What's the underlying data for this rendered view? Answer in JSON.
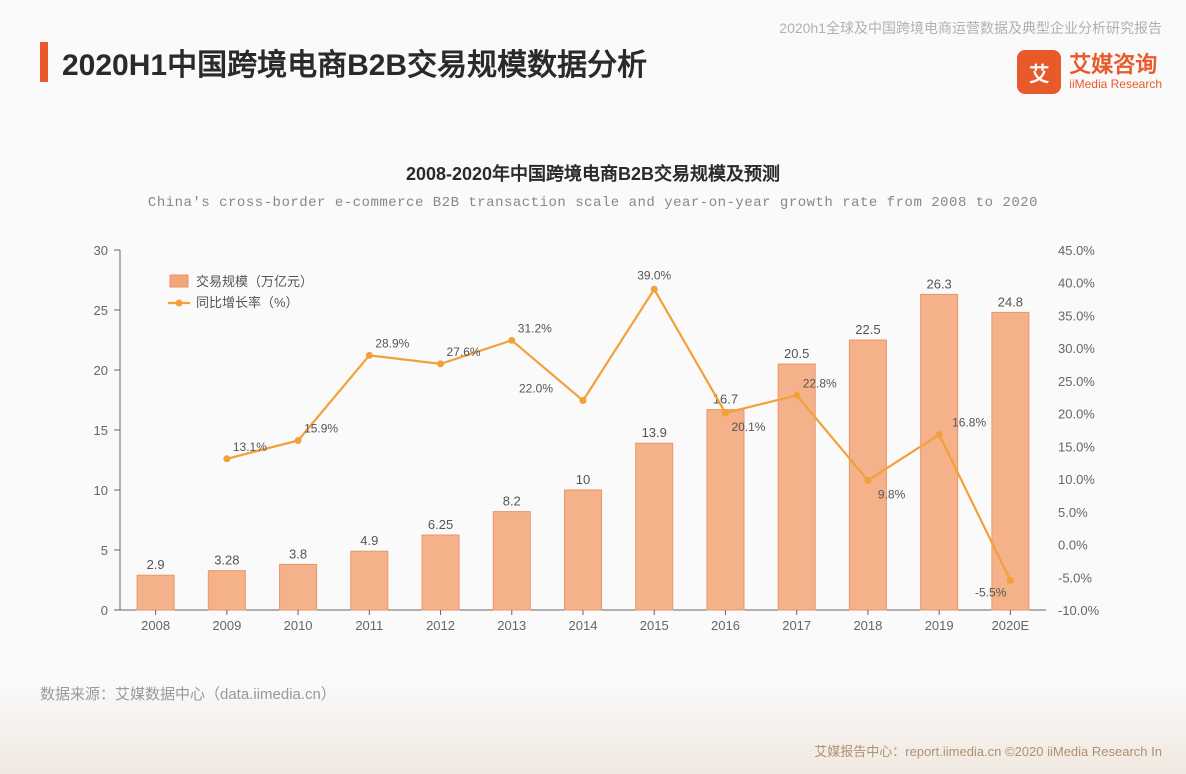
{
  "header": {
    "top_right": "2020h1全球及中国跨境电商运营数据及典型企业分析研究报告",
    "title": "2020H1中国跨境电商B2B交易规模数据分析",
    "accent_color": "#e85a2a",
    "title_color": "#2a2a2a",
    "title_fontsize": 30
  },
  "brand": {
    "logo_glyph": "艾",
    "name_cn": "艾媒咨询",
    "name_en": "iiMedia Research",
    "brand_color": "#e85a2a"
  },
  "chart": {
    "type": "bar+line (combo, dual-axis)",
    "title_cn": "2008-2020年中国跨境电商B2B交易规模及预测",
    "title_en": "China's cross-border e-commerce B2B transaction scale and year-on-year growth rate  from 2008 to 2020",
    "title_fontsize": 18,
    "subtitle_fontsize": 14,
    "subtitle_color": "#888888",
    "legend": {
      "bar_label": "交易规模（万亿元）",
      "line_label": "同比增长率（%）",
      "bar_marker_color": "#f2a679",
      "line_marker_color": "#f2a03a",
      "fontsize": 13,
      "position": "upper-left-inside"
    },
    "categories": [
      "2008",
      "2009",
      "2010",
      "2011",
      "2012",
      "2013",
      "2014",
      "2015",
      "2016",
      "2017",
      "2018",
      "2019",
      "2020E"
    ],
    "bar_values": [
      2.9,
      3.28,
      3.8,
      4.9,
      6.25,
      8.2,
      10,
      13.9,
      16.7,
      20.5,
      22.5,
      26.3,
      24.8
    ],
    "bar_value_labels": [
      "2.9",
      "3.28",
      "3.8",
      "4.9",
      "6.25",
      "8.2",
      "10",
      "13.9",
      "16.7",
      "20.5",
      "22.5",
      "26.3",
      "24.8"
    ],
    "line_values": [
      null,
      13.1,
      15.9,
      28.9,
      27.6,
      31.2,
      22.0,
      39.0,
      20.1,
      22.8,
      9.8,
      16.8,
      -5.5
    ],
    "line_value_labels": [
      null,
      "13.1%",
      "15.9%",
      "28.9%",
      "27.6%",
      "31.2%",
      "22.0%",
      "39.0%",
      "20.1%",
      "22.8%",
      "9.8%",
      "16.8%",
      "-5.5%"
    ],
    "y_left": {
      "min": 0,
      "max": 30,
      "step": 5,
      "ticks": [
        0,
        5,
        10,
        15,
        20,
        25,
        30
      ]
    },
    "y_right": {
      "min": -10,
      "max": 45,
      "step": 5,
      "ticks": [
        -10,
        -5,
        0,
        5,
        10,
        15,
        20,
        25,
        30,
        35,
        40,
        45
      ],
      "suffix": "%",
      "decimals": 1
    },
    "bar_fill": "#f4b18a",
    "bar_stroke": "#e8986a",
    "bar_width_ratio": 0.52,
    "line_color": "#f2a03a",
    "line_width": 2.2,
    "marker_color": "#f2a03a",
    "marker_radius": 3.5,
    "axis_color": "#666666",
    "tick_fontsize": 13,
    "label_fontsize": 12,
    "value_label_color": "#555555",
    "background_color": "#fafafa"
  },
  "source": {
    "text": "数据来源：艾媒数据中心（data.iimedia.cn）",
    "color": "#999999",
    "fontsize": 15
  },
  "footer": {
    "text": "艾媒报告中心：report.iimedia.cn   ©2020   iiMedia Research In",
    "color": "#b09070"
  }
}
